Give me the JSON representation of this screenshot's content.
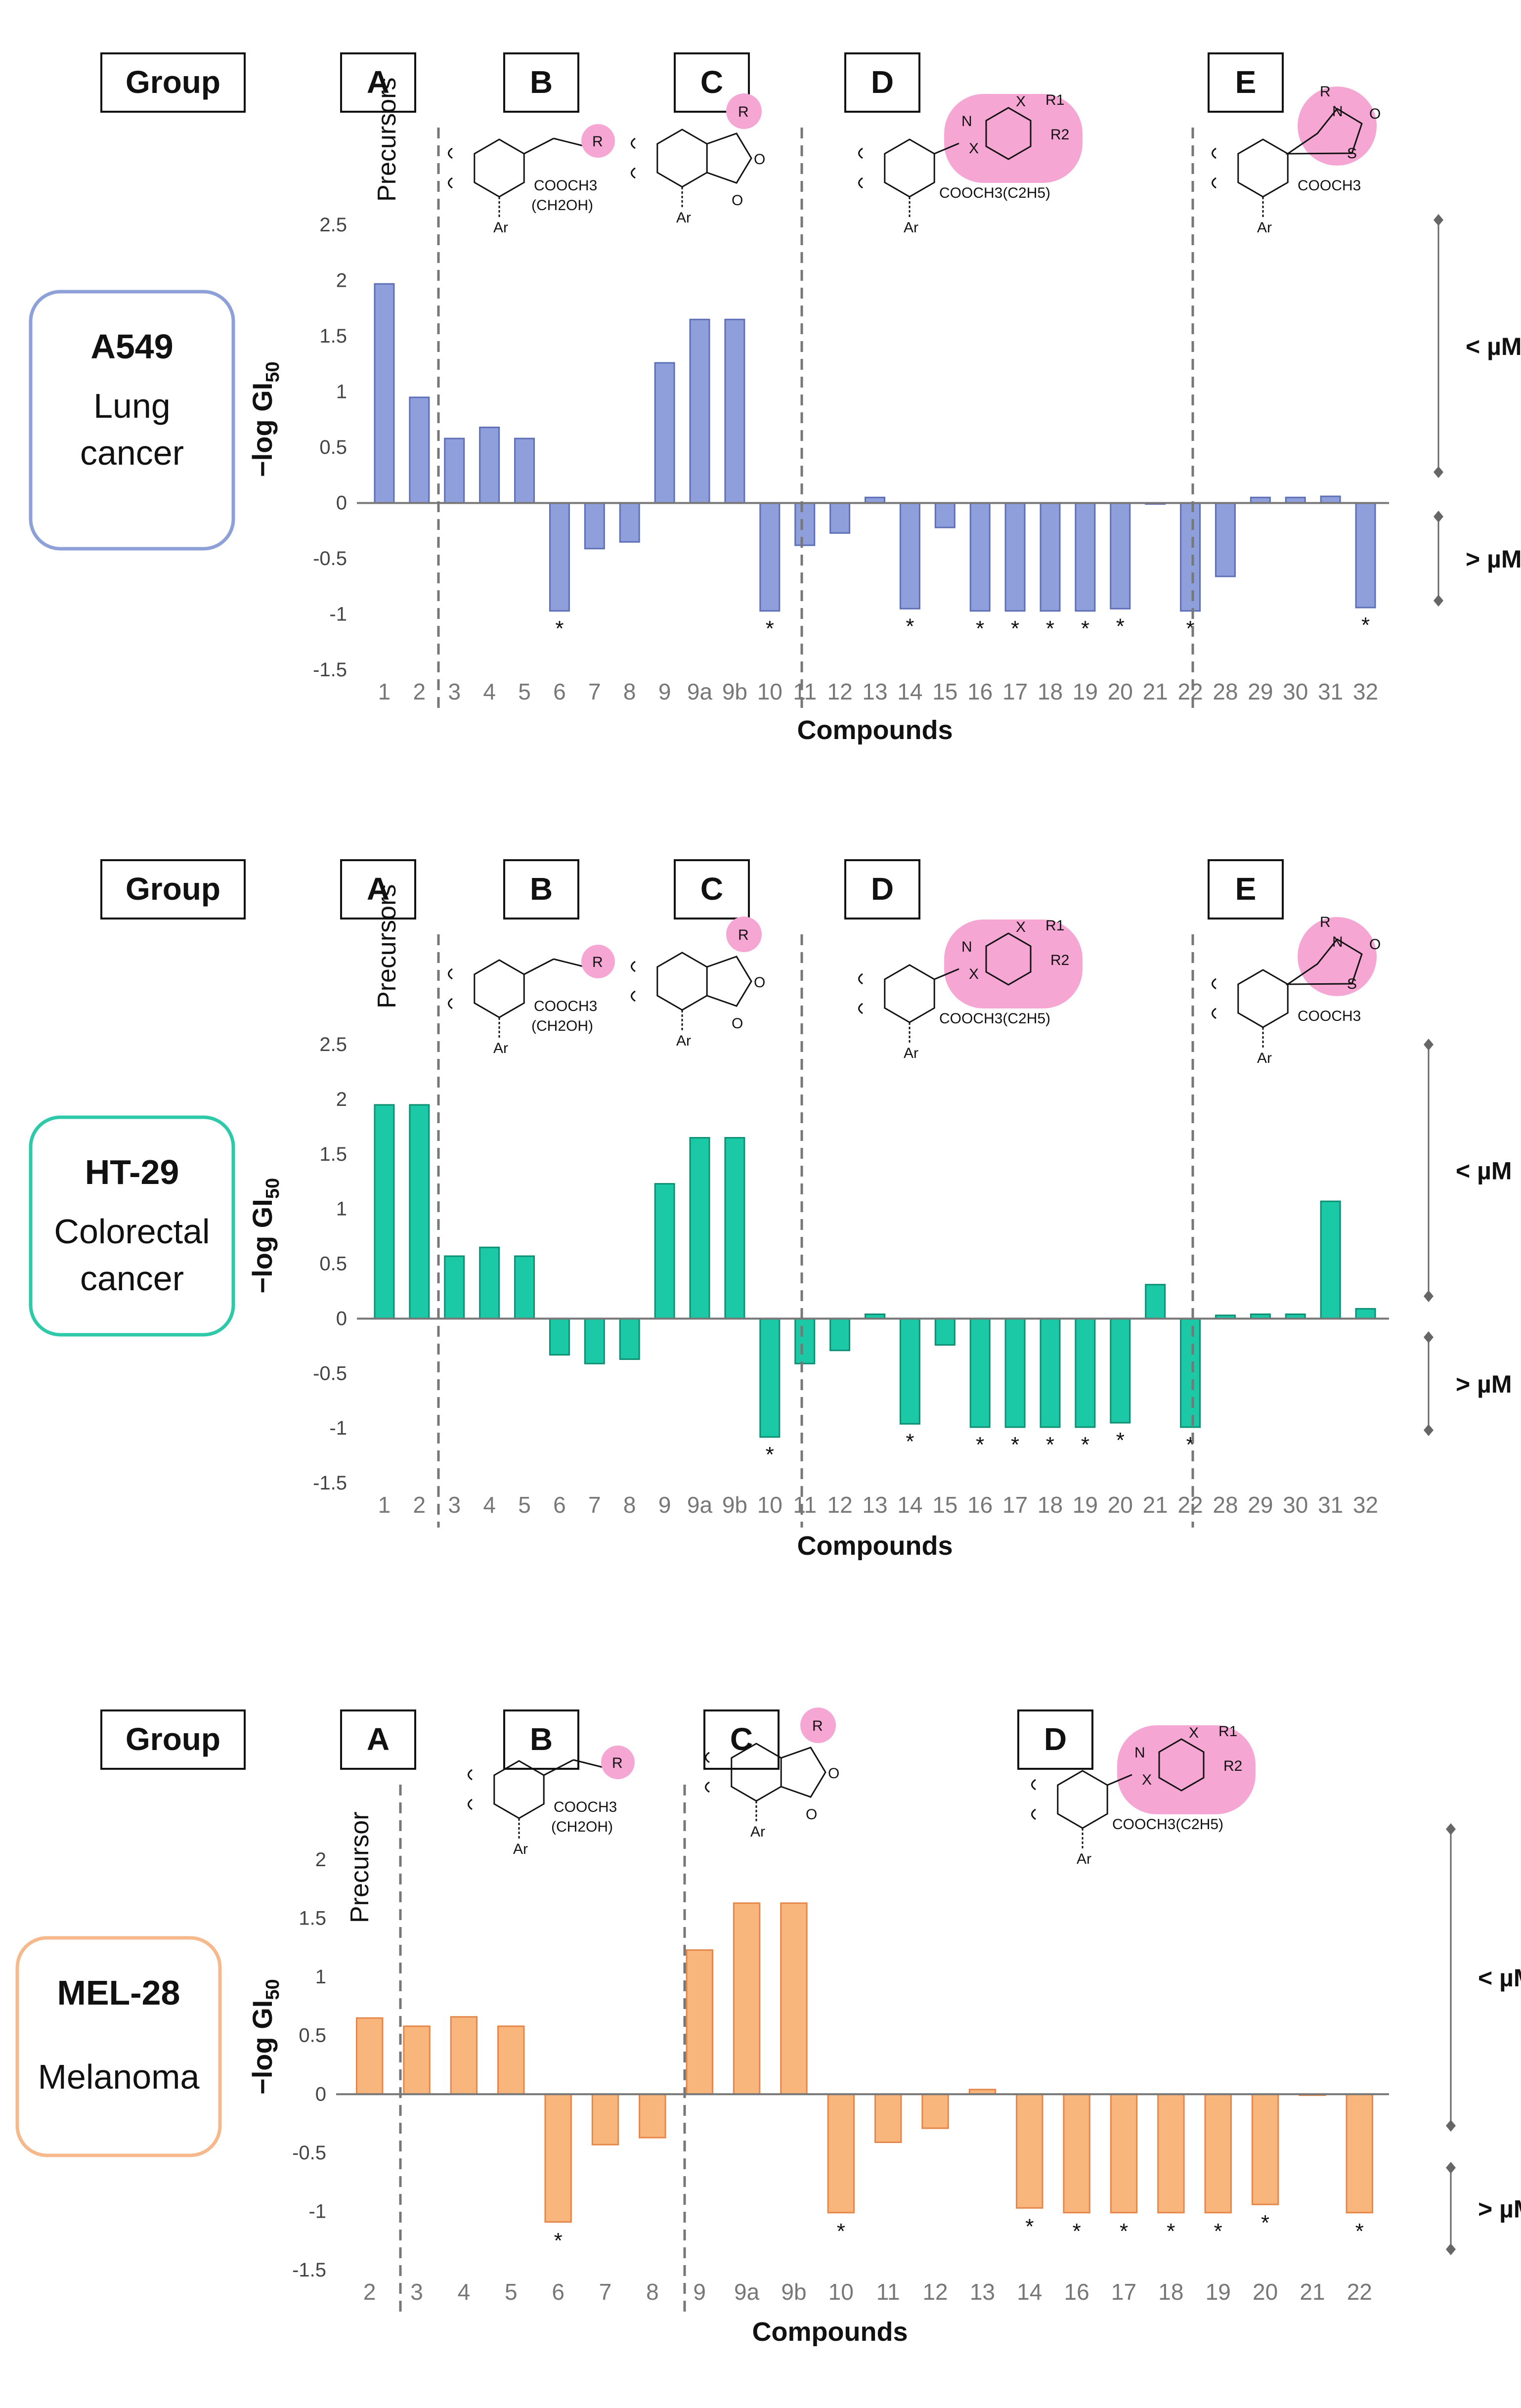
{
  "header": {
    "group_label": "Group"
  },
  "structures": {
    "B": {
      "substituent": "R",
      "ester": "COOCH3",
      "alt": "(CH2OH)",
      "aryl": "Ar"
    },
    "C": {
      "substituent": "R",
      "oxygen": "O",
      "aryl": "Ar"
    },
    "D": {
      "x": "X",
      "n": "N",
      "r1": "R1",
      "r2": "R2",
      "ester": "COOCH3(C2H5)",
      "aryl": "Ar"
    },
    "E": {
      "r": "R",
      "n": "N",
      "o": "O",
      "s": "S",
      "ester": "COOCH3",
      "aryl": "Ar"
    }
  },
  "colors": {
    "A549": {
      "fill": "#8f9fdb",
      "edge": "#5e6fb5",
      "box": "#8ea0d8"
    },
    "HT-29": {
      "fill": "#1cc9a6",
      "edge": "#0e8f74",
      "box": "#2ec9a9"
    },
    "MEL-28": {
      "fill": "#f8b57c",
      "edge": "#e5874a",
      "box": "#f5b98c"
    },
    "highlight": "#f5a6d3"
  },
  "chart_data": [
    {
      "type": "bar",
      "cell_line": "A549",
      "cell_line_desc": [
        "Lung",
        "cancer"
      ],
      "groups": [
        "A",
        "B",
        "C",
        "D",
        "E"
      ],
      "precursor_label": "Precursors",
      "categories": [
        "1",
        "2",
        "3",
        "4",
        "5",
        "6",
        "7",
        "8",
        "9",
        "9a",
        "9b",
        "10",
        "11",
        "12",
        "13",
        "14",
        "15",
        "16",
        "17",
        "18",
        "19",
        "20",
        "21",
        "22",
        "28",
        "29",
        "30",
        "31",
        "32"
      ],
      "values": [
        1.97,
        0.95,
        0.58,
        0.68,
        0.58,
        -0.97,
        -0.41,
        -0.35,
        1.26,
        1.65,
        1.65,
        -0.97,
        -0.38,
        -0.27,
        0.05,
        -0.95,
        -0.22,
        -0.97,
        -0.97,
        -0.97,
        -0.97,
        -0.95,
        0,
        -0.97,
        -0.66,
        0.05,
        0.05,
        0.06,
        -0.94
      ],
      "significant": [
        "6",
        "10",
        "14",
        "16",
        "17",
        "18",
        "19",
        "20",
        "22",
        "32"
      ],
      "xlabel": "Compounds",
      "ylabel": "−log GI",
      "ylabel_sub": "50",
      "ylim": [
        -1.5,
        2.5
      ],
      "yticks": [
        "2.5",
        "2",
        "1.5",
        "1",
        "0.5",
        "0",
        "-0.5",
        "-1",
        "-1.5"
      ],
      "range_above": "< µM",
      "range_below": "> µM"
    },
    {
      "type": "bar",
      "cell_line": "HT-29",
      "cell_line_desc": [
        "Colorectal",
        "cancer"
      ],
      "groups": [
        "A",
        "B",
        "C",
        "D",
        "E"
      ],
      "precursor_label": "Precursors",
      "categories": [
        "1",
        "2",
        "3",
        "4",
        "5",
        "6",
        "7",
        "8",
        "9",
        "9a",
        "9b",
        "10",
        "11",
        "12",
        "13",
        "14",
        "15",
        "16",
        "17",
        "18",
        "19",
        "20",
        "21",
        "22",
        "28",
        "29",
        "30",
        "31",
        "32"
      ],
      "values": [
        1.95,
        1.95,
        0.57,
        0.65,
        0.57,
        -0.33,
        -0.41,
        -0.37,
        1.23,
        1.65,
        1.65,
        -1.08,
        -0.41,
        -0.29,
        0.04,
        -0.96,
        -0.24,
        -0.99,
        -0.99,
        -0.99,
        -0.99,
        -0.95,
        0.31,
        -0.99,
        0.03,
        0.04,
        0.04,
        1.07,
        0.09
      ],
      "significant": [
        "10",
        "14",
        "16",
        "17",
        "18",
        "19",
        "20",
        "22"
      ],
      "xlabel": "Compounds",
      "ylabel": "−log GI",
      "ylabel_sub": "50",
      "ylim": [
        -1.5,
        2.5
      ],
      "yticks": [
        "2.5",
        "2",
        "1.5",
        "1",
        "0.5",
        "0",
        "-0.5",
        "-1",
        "-1.5"
      ],
      "range_above": "< µM",
      "range_below": "> µM"
    },
    {
      "type": "bar",
      "cell_line": "MEL-28",
      "cell_line_desc": [
        "Melanoma"
      ],
      "groups": [
        "A",
        "B",
        "C",
        "D"
      ],
      "precursor_label": "Precursor",
      "categories": [
        "2",
        "3",
        "4",
        "5",
        "6",
        "7",
        "8",
        "9",
        "9a",
        "9b",
        "10",
        "11",
        "12",
        "13",
        "14",
        "16",
        "17",
        "18",
        "19",
        "20",
        "21",
        "22"
      ],
      "values": [
        0.65,
        0.58,
        0.66,
        0.58,
        -1.09,
        -0.43,
        -0.37,
        1.23,
        1.63,
        1.63,
        -1.01,
        -0.41,
        -0.29,
        0.04,
        -0.97,
        -1.01,
        -1.01,
        -1.01,
        -1.01,
        -0.94,
        0,
        -1.01
      ],
      "significant": [
        "6",
        "10",
        "14",
        "16",
        "17",
        "18",
        "19",
        "20",
        "22"
      ],
      "xlabel": "Compounds",
      "ylabel": "−log GI",
      "ylabel_sub": "50",
      "ylim": [
        -1.5,
        2
      ],
      "yticks": [
        "2",
        "1.5",
        "1",
        "0.5",
        "0",
        "-0.5",
        "-1",
        "-1.5"
      ],
      "range_above": "< µM",
      "range_below": "> µM"
    }
  ]
}
